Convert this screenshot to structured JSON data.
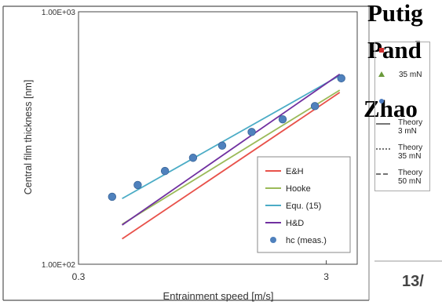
{
  "background_text": {
    "line1": "Putig",
    "line2": "Pand",
    "line3": "Zhao",
    "page_number": "13/"
  },
  "second_legend": {
    "items": [
      {
        "label": "",
        "marker": "square",
        "color": "#d13030"
      },
      {
        "label": "35 mN",
        "marker": "triangle",
        "color": "#6a9a3a"
      },
      {
        "label": "",
        "marker": "circle",
        "color": "#4c7bc0"
      },
      {
        "label": "Theory\n3 mN",
        "line": "solid"
      },
      {
        "label": "Theory\n35 mN",
        "line": "dotted"
      },
      {
        "label": "Theory\n50 mN",
        "line": "dashed"
      }
    ]
  },
  "chart_data": {
    "type": "line",
    "xlabel": "Entrainment speed [m/s]",
    "ylabel": "Central film thickness [nm]",
    "x_scale": "log",
    "y_scale": "log",
    "xlim": [
      0.3,
      4.0
    ],
    "ylim": [
      100,
      1000
    ],
    "x_ticks": [
      {
        "value": 0.3,
        "label": "0.3"
      },
      {
        "value": 3,
        "label": "3"
      }
    ],
    "y_ticks": [
      {
        "value": 100,
        "label": "1.00E+02"
      },
      {
        "value": 1000,
        "label": "1.00E+03"
      }
    ],
    "grid": false,
    "legend_position": "bottom-right",
    "series": [
      {
        "name": "E&H",
        "kind": "line",
        "color": "#e8514a",
        "x": [
          0.45,
          3.4
        ],
        "y": [
          126,
          479
        ]
      },
      {
        "name": "Hooke",
        "kind": "line",
        "color": "#9bba59",
        "x": [
          0.45,
          3.4
        ],
        "y": [
          144,
          489
        ]
      },
      {
        "name": "Equ. (15)",
        "kind": "line",
        "color": "#4bacc6",
        "x": [
          0.45,
          3.4
        ],
        "y": [
          182,
          559
        ]
      },
      {
        "name": "H&D",
        "kind": "line",
        "color": "#7030a0",
        "x": [
          0.45,
          3.4
        ],
        "y": [
          143,
          566
        ]
      },
      {
        "name": "hc (meas.)",
        "kind": "scatter",
        "color": "#4f81bd",
        "x": [
          0.41,
          0.52,
          0.67,
          0.87,
          1.14,
          1.5,
          2.0,
          2.7,
          3.45
        ],
        "y": [
          185,
          206,
          234,
          264,
          295,
          334,
          375,
          423,
          545
        ]
      }
    ]
  }
}
